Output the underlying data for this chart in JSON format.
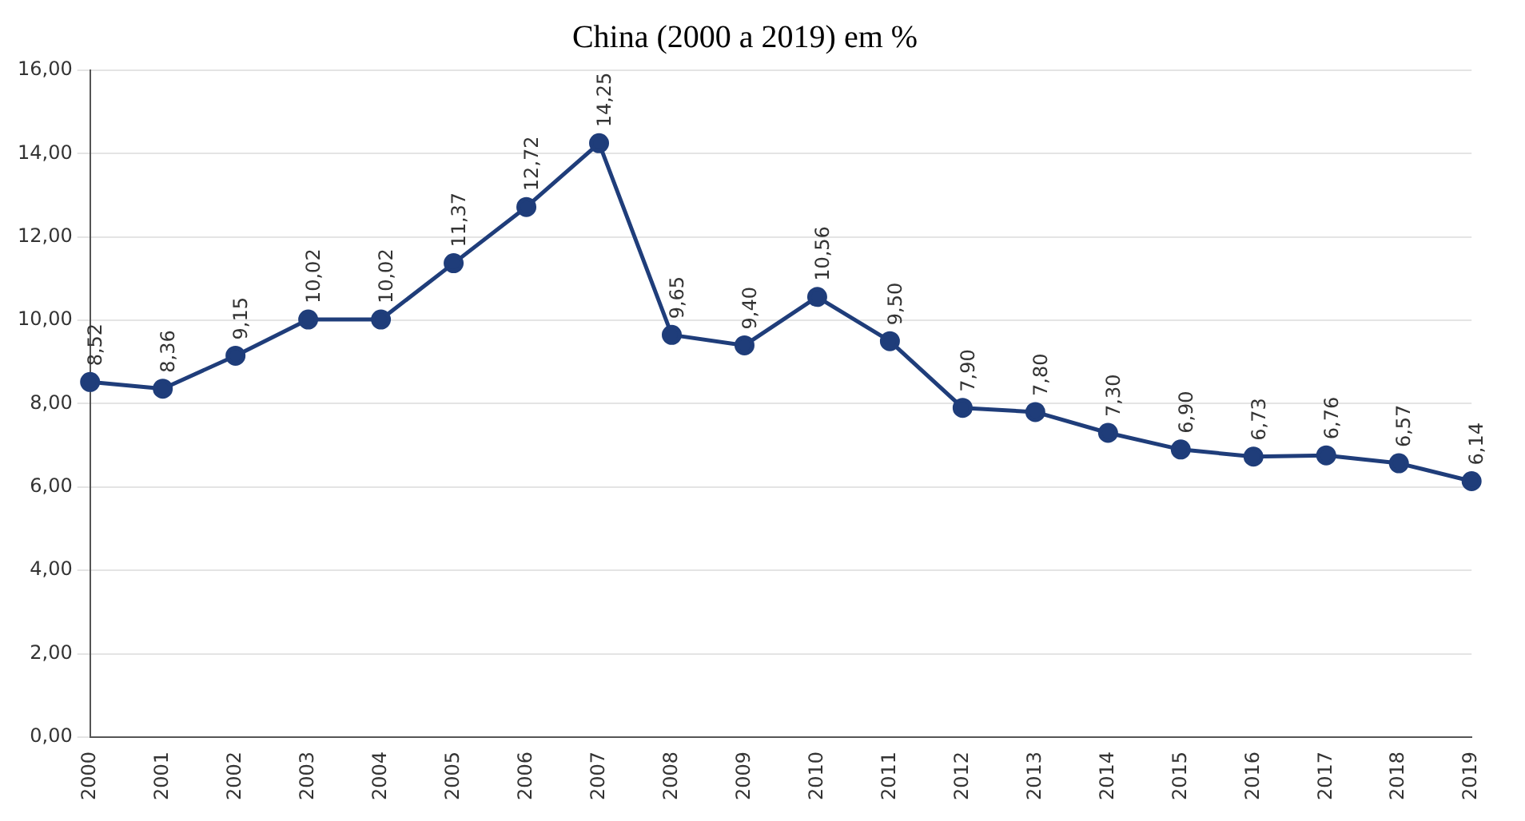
{
  "chart_data": {
    "type": "line",
    "title": "China (2000 a 2019) em %",
    "categories": [
      "2000",
      "2001",
      "2002",
      "2003",
      "2004",
      "2005",
      "2006",
      "2007",
      "2008",
      "2009",
      "2010",
      "2011",
      "2012",
      "2013",
      "2014",
      "2015",
      "2016",
      "2017",
      "2018",
      "2019"
    ],
    "series": [
      {
        "color": "#1f3d7a",
        "values": [
          8.52,
          8.36,
          9.15,
          10.02,
          10.02,
          11.37,
          12.72,
          14.25,
          9.65,
          9.4,
          10.56,
          9.5,
          7.9,
          7.8,
          7.3,
          6.9,
          6.73,
          6.76,
          6.57,
          6.14
        ],
        "value_labels": [
          "8,52",
          "8,36",
          "9,15",
          "10,02",
          "10,02",
          "11,37",
          "12,72",
          "14,25",
          "9,65",
          "9,40",
          "10,56",
          "9,50",
          "7,90",
          "7,80",
          "7,30",
          "6,90",
          "6,73",
          "6,76",
          "6,57",
          "6,14"
        ]
      }
    ],
    "ylim": [
      0,
      16
    ],
    "yticks": [
      {
        "value": 0,
        "label": "0,00"
      },
      {
        "value": 2,
        "label": "2,00"
      },
      {
        "value": 4,
        "label": "4,00"
      },
      {
        "value": 6,
        "label": "6,00"
      },
      {
        "value": 8,
        "label": "8,00"
      },
      {
        "value": 10,
        "label": "10,00"
      },
      {
        "value": 12,
        "label": "12,00"
      },
      {
        "value": 14,
        "label": "14,00"
      },
      {
        "value": 16,
        "label": "16,00"
      }
    ],
    "grid": "y",
    "legend": false,
    "marker": "circle",
    "line_style": "solid"
  }
}
